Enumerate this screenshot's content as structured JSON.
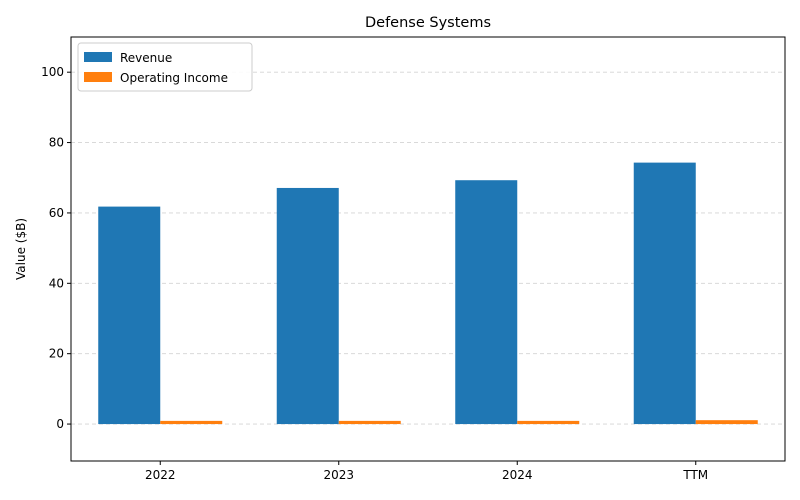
{
  "chart_data": {
    "type": "bar",
    "title": "Defense Systems",
    "xlabel": "",
    "ylabel": "Value ($B)",
    "categories": [
      "2022",
      "2023",
      "2024",
      "TTM"
    ],
    "series": [
      {
        "name": "Revenue",
        "values": [
          61.8,
          67.1,
          69.3,
          74.3
        ],
        "color": "#1f77b4"
      },
      {
        "name": "Operating Income",
        "values": [
          0.9,
          0.9,
          0.9,
          1.1
        ],
        "color": "#ff7f0e"
      }
    ],
    "ylim": [
      -10.5,
      110
    ],
    "yticks": [
      0,
      20,
      40,
      60,
      80,
      100
    ],
    "grid": true,
    "legend_position": "top-left"
  }
}
